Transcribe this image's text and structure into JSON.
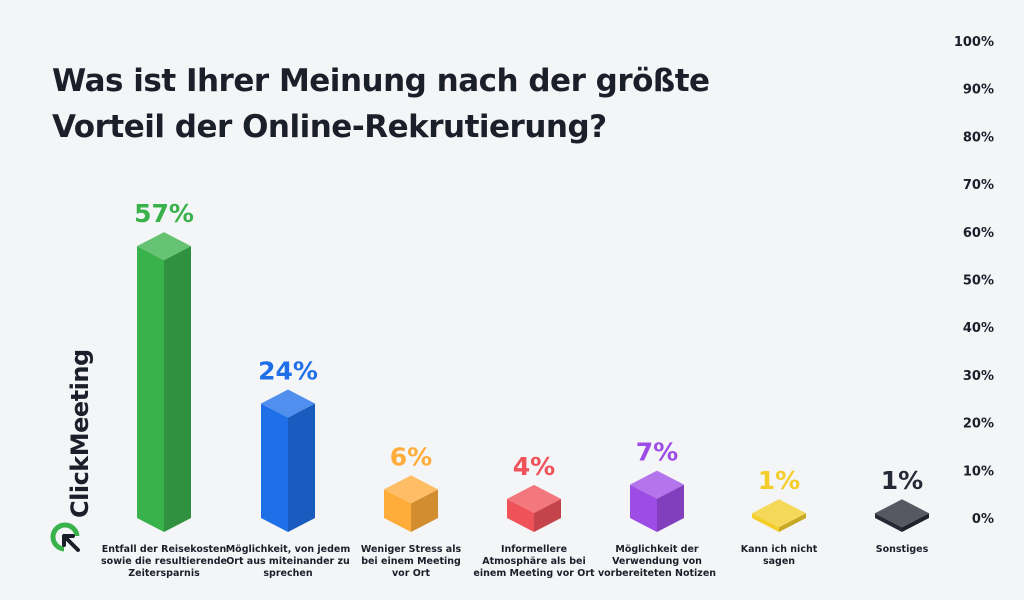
{
  "title": {
    "line1": "Was ist Ihrer Meinung nach der größte",
    "line2": "Vorteil der Online-Rekrutierung?"
  },
  "brand": {
    "name": "ClickMeeting",
    "icon": "clickmeeting-logo-icon"
  },
  "chart_data": {
    "type": "bar",
    "title": "Was ist Ihrer Meinung nach der größte Vorteil der Online-Rekrutierung?",
    "ylim": [
      0,
      100
    ],
    "yticks": [
      "100%",
      "90%",
      "80%",
      "70%",
      "60%",
      "50%",
      "40%",
      "30%",
      "20%",
      "10%",
      "0%"
    ],
    "y_axis_side": "right",
    "grid": false,
    "categories": [
      [
        "Entfall der Reisekosten",
        "sowie die resultierende",
        "Zeitersparnis"
      ],
      [
        "Möglichkeit, von jedem",
        "Ort aus miteinander zu",
        "sprechen"
      ],
      [
        "Weniger Stress als",
        "bei einem Meeting",
        "vor Ort"
      ],
      [
        "Informellere",
        "Atmosphäre als bei",
        "einem Meeting vor Ort"
      ],
      [
        "Möglichkeit der",
        "Verwendung von",
        "vorbereiteten Notizen"
      ],
      [
        "Kann ich nicht",
        "sagen"
      ],
      [
        "Sonstiges"
      ]
    ],
    "values": [
      57,
      24,
      6,
      4,
      7,
      1,
      1
    ],
    "value_labels": [
      "57%",
      "24%",
      "6%",
      "4%",
      "7%",
      "1%",
      "1%"
    ],
    "colors": [
      "#3ab24b",
      "#1e6fe8",
      "#ffac3a",
      "#f0525a",
      "#9d4de6",
      "#f4cd2a",
      "#262a36"
    ]
  }
}
